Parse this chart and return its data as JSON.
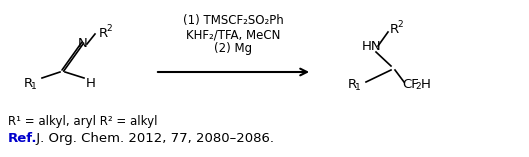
{
  "bg_color": "#ffffff",
  "fig_width": 5.29,
  "fig_height": 1.57,
  "dpi": 100,
  "condition1": "(1) TMSCF₂SO₂Ph",
  "condition2": "KHF₂/TFA, MeCN",
  "condition3": "(2) Mg",
  "ref_text": "Ref.",
  "ref_color": "#0000cc",
  "citation_text": " J. Org. Chem. 2012, 77, 2080–2086.",
  "citation_color": "#000000",
  "footnote_text": "R¹ = alkyl, aryl R² = alkyl",
  "font_size_main": 9.5,
  "font_size_small": 8.5,
  "font_size_ref": 9.5,
  "font_size_super": 6.5
}
